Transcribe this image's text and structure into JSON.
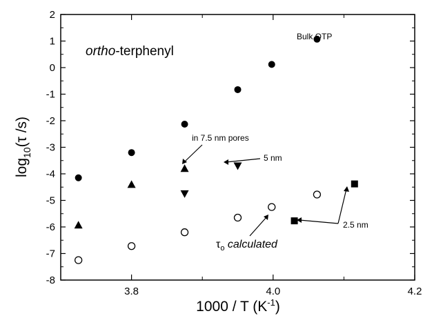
{
  "chart_data": {
    "type": "scatter",
    "title_prefix": "ortho",
    "title_suffix": "-terphenyl",
    "xlabel_main": "1000 / T (K",
    "xlabel_sup": "-1",
    "xlabel_close": ")",
    "ylabel_base": "log",
    "ylabel_sub": "10",
    "ylabel_rest": "(τ /s)",
    "xlim": [
      3.7,
      4.2
    ],
    "ylim": [
      -8,
      2
    ],
    "x_ticks": [
      3.8,
      4.0,
      4.2
    ],
    "x_tick_labels": [
      "3.8",
      "4.0",
      "4.2"
    ],
    "y_ticks": [
      -8,
      -7,
      -6,
      -5,
      -4,
      -3,
      -2,
      -1,
      0,
      1,
      2
    ],
    "y_tick_labels": [
      "-8",
      "-7",
      "-6",
      "-5",
      "-4",
      "-3",
      "-2",
      "-1",
      "0",
      "1",
      "2"
    ],
    "series": [
      {
        "marker": "filled-circle",
        "points": [
          [
            3.725,
            -4.15
          ],
          [
            3.8,
            -3.2
          ],
          [
            3.875,
            -2.13
          ],
          [
            3.95,
            -0.83
          ],
          [
            3.998,
            0.12
          ],
          [
            4.062,
            1.07
          ]
        ]
      },
      {
        "marker": "filled-triangle-up",
        "points": [
          [
            3.725,
            -5.93
          ],
          [
            3.8,
            -4.4
          ],
          [
            3.875,
            -3.8
          ]
        ]
      },
      {
        "marker": "filled-triangle-down",
        "points": [
          [
            3.875,
            -4.75
          ],
          [
            3.95,
            -3.7
          ]
        ]
      },
      {
        "marker": "filled-square",
        "points": [
          [
            4.03,
            -5.77
          ],
          [
            4.115,
            -4.38
          ]
        ]
      },
      {
        "marker": "open-circle",
        "points": [
          [
            3.725,
            -7.25
          ],
          [
            3.8,
            -6.72
          ],
          [
            3.875,
            -6.2
          ],
          [
            3.95,
            -5.65
          ],
          [
            3.998,
            -5.25
          ],
          [
            4.062,
            -4.78
          ]
        ]
      }
    ],
    "annotations": {
      "bulk": "Bulk OTP",
      "pores": "in 7.5 nm pores",
      "five": "5 nm",
      "twofive": "2.5 nm",
      "tau_symbol": "τ",
      "tau_sub": "o",
      "tau_text": " calculated"
    }
  }
}
